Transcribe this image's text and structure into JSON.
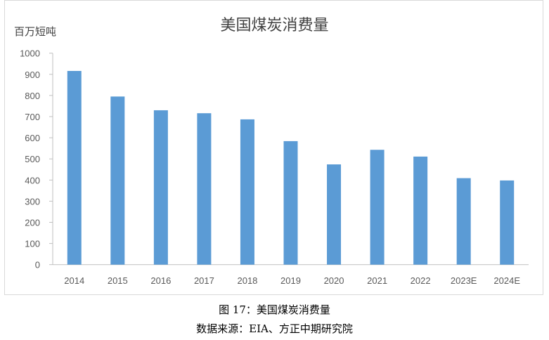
{
  "chart_data": {
    "type": "bar",
    "title": "美国煤炭消费量",
    "ylabel": "百万短吨",
    "xlabel": "",
    "categories": [
      "2014",
      "2015",
      "2016",
      "2017",
      "2018",
      "2019",
      "2020",
      "2021",
      "2022",
      "2023E",
      "2024E"
    ],
    "values": [
      916,
      795,
      730,
      716,
      687,
      584,
      474,
      543,
      511,
      409,
      398
    ],
    "ylim": [
      0,
      1000
    ],
    "yticks": [
      0,
      100,
      200,
      300,
      400,
      500,
      600,
      700,
      800,
      900,
      1000
    ],
    "grid": false,
    "bar_color": "#5b9bd5"
  },
  "caption": {
    "figure": "图 17：美国煤炭消费量",
    "source": "数据来源：EIA、方正中期研究院"
  }
}
